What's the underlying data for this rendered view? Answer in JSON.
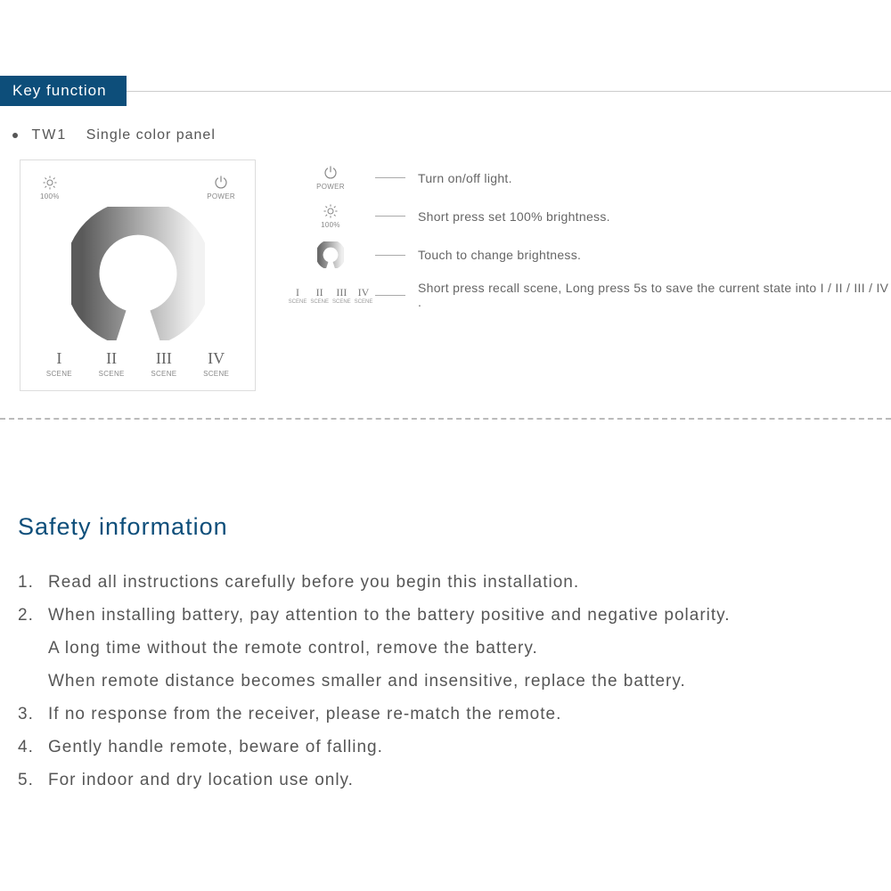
{
  "header": {
    "title": "Key function",
    "tab_bg": "#0d4e7a",
    "tab_fg": "#ffffff"
  },
  "subtitle": {
    "model": "TW1",
    "desc": "Single color panel"
  },
  "panel": {
    "brightness_label": "100%",
    "power_label": "POWER",
    "scene_label": "SCENE",
    "romans": [
      "I",
      "II",
      "III",
      "IV"
    ]
  },
  "legend": {
    "rows": [
      {
        "icon": "power",
        "sublabel": "POWER",
        "text": "Turn on/off light."
      },
      {
        "icon": "sun",
        "sublabel": "100%",
        "text": "Short press set 100% brightness."
      },
      {
        "icon": "ring",
        "sublabel": "",
        "text": "Touch to change brightness."
      },
      {
        "icon": "scenes",
        "sublabel": "SCENE",
        "text": "Short press recall scene, Long press 5s to save the current state into I / II / III / IV ."
      }
    ]
  },
  "safety": {
    "title": "Safety information",
    "items": [
      "Read all instructions carefully before you begin this installation.",
      "When installing battery, pay attention to the battery positive and negative polarity.\nA long time without the remote control, remove the battery.\nWhen remote distance becomes smaller and insensitive, replace the battery.",
      "If no response from the receiver, please re-match the remote.",
      "Gently handle remote, beware of falling.",
      "For indoor and dry location use only."
    ]
  },
  "colors": {
    "text": "#565656",
    "accent": "#0d4e7a",
    "rule": "#cccccc",
    "dash": "#bbbbbb"
  }
}
